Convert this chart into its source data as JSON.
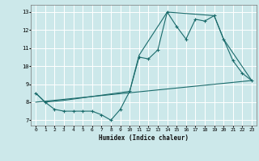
{
  "xlabel": "Humidex (Indice chaleur)",
  "bg_color": "#cce8ea",
  "grid_color": "#ffffff",
  "line_color": "#1a6b6b",
  "xlim": [
    -0.5,
    23.5
  ],
  "ylim": [
    6.7,
    13.4
  ],
  "xticks": [
    0,
    1,
    2,
    3,
    4,
    5,
    6,
    7,
    8,
    9,
    10,
    11,
    12,
    13,
    14,
    15,
    16,
    17,
    18,
    19,
    20,
    21,
    22,
    23
  ],
  "yticks": [
    7,
    8,
    9,
    10,
    11,
    12,
    13
  ],
  "line1_x": [
    0,
    1,
    2,
    3,
    4,
    5,
    6,
    7,
    8,
    9,
    10,
    11,
    12,
    13,
    14,
    15,
    16,
    17,
    18,
    19,
    20,
    21,
    22,
    23
  ],
  "line1_y": [
    8.5,
    8.0,
    7.6,
    7.5,
    7.5,
    7.5,
    7.5,
    7.3,
    7.0,
    7.6,
    8.6,
    10.5,
    10.4,
    10.9,
    13.0,
    12.2,
    11.5,
    12.6,
    12.5,
    12.8,
    11.5,
    10.3,
    9.6,
    9.2
  ],
  "line2_x": [
    0,
    1,
    3,
    10,
    11,
    14,
    19,
    20,
    23
  ],
  "line2_y": [
    8.5,
    8.0,
    8.1,
    8.6,
    10.6,
    13.0,
    12.8,
    11.5,
    9.2
  ],
  "line3_x": [
    0,
    23
  ],
  "line3_y": [
    8.0,
    9.2
  ]
}
